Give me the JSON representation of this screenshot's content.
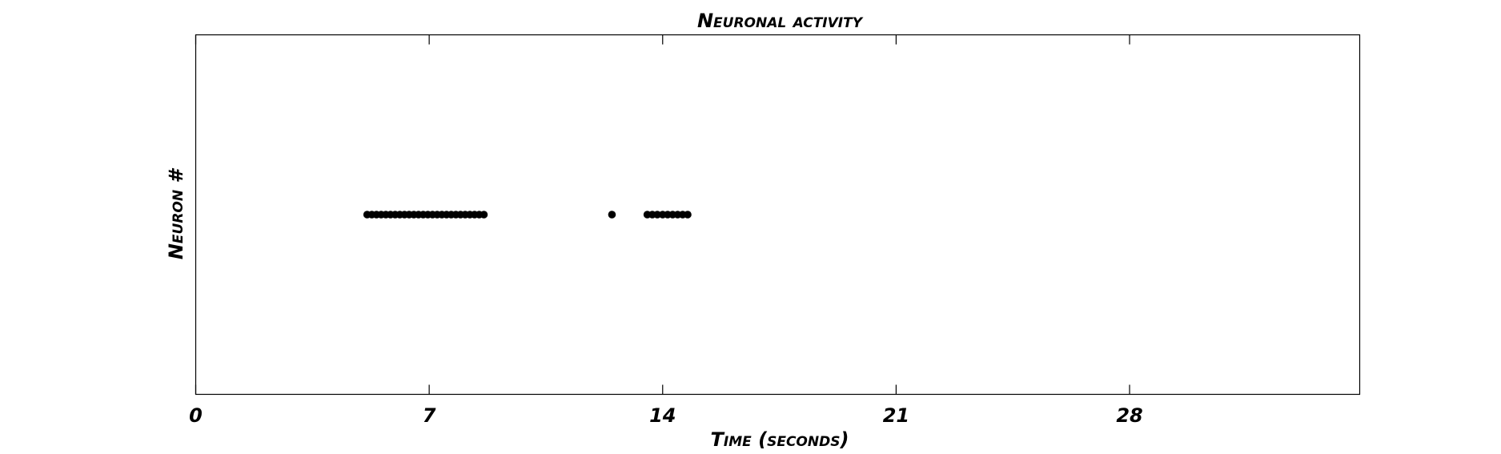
{
  "chart_data": {
    "type": "scatter",
    "title": "Neuronal activity",
    "xlabel": "Time (seconds)",
    "ylabel": "Neuron #",
    "xlim": [
      0,
      34.9
    ],
    "ylim": [
      0,
      2
    ],
    "xticks": [
      0,
      7,
      14,
      21,
      28
    ],
    "xtick_labels": [
      "0",
      "7",
      "14",
      "21",
      "28"
    ],
    "yticks": [],
    "grid": false,
    "legend": "none",
    "marker": "circle",
    "color": "#000000",
    "series": [
      {
        "x": [
          5.14,
          5.28,
          5.42,
          5.56,
          5.7,
          5.84,
          5.98,
          6.12,
          6.26,
          6.4,
          6.54,
          6.68,
          6.82,
          6.96,
          7.1,
          7.24,
          7.38,
          7.52,
          7.66,
          7.8,
          7.94,
          8.08,
          8.22,
          8.36,
          8.5,
          8.64,
          12.48,
          13.54,
          13.69,
          13.84,
          14.0,
          14.15,
          14.3,
          14.45,
          14.6,
          14.75
        ],
        "y": [
          1,
          1,
          1,
          1,
          1,
          1,
          1,
          1,
          1,
          1,
          1,
          1,
          1,
          1,
          1,
          1,
          1,
          1,
          1,
          1,
          1,
          1,
          1,
          1,
          1,
          1,
          1,
          1,
          1,
          1,
          1,
          1,
          1,
          1,
          1,
          1
        ]
      }
    ]
  }
}
